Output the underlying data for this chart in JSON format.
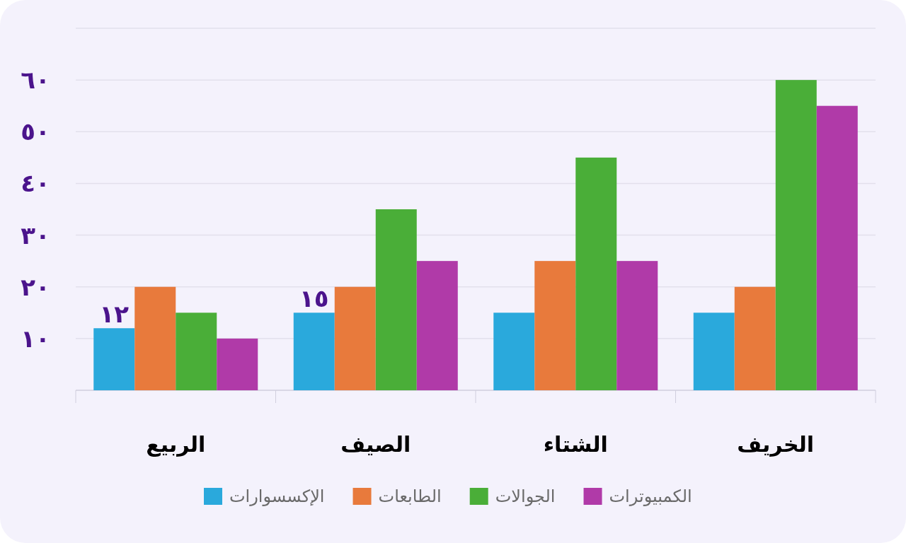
{
  "chart_data": {
    "type": "bar",
    "categories": [
      "الربيع",
      "الصيف",
      "الشتاء",
      "الخريف"
    ],
    "series": [
      {
        "name": "الإكسسوارات",
        "color": "#2aa9dc",
        "values": [
          12,
          15,
          15,
          15
        ],
        "value_labels": [
          "١٢",
          "١٥",
          null,
          null
        ]
      },
      {
        "name": "الطابعات",
        "color": "#e87a3c",
        "values": [
          20,
          20,
          25,
          20
        ]
      },
      {
        "name": "الجوالات",
        "color": "#4aae38",
        "values": [
          15,
          35,
          45,
          60
        ]
      },
      {
        "name": "الكمبيوترات",
        "color": "#b03aa8",
        "values": [
          10,
          25,
          25,
          55
        ]
      }
    ],
    "ylim": [
      0,
      70
    ],
    "yticks": [
      {
        "value": 10,
        "label": "١٠"
      },
      {
        "value": 20,
        "label": "٢٠"
      },
      {
        "value": 30,
        "label": "٣٠"
      },
      {
        "value": 40,
        "label": "٤٠"
      },
      {
        "value": 50,
        "label": "٥٠"
      },
      {
        "value": 60,
        "label": "٦٠"
      },
      {
        "value": 70,
        "label": null
      }
    ],
    "grid": "y",
    "legend": "bottom"
  }
}
